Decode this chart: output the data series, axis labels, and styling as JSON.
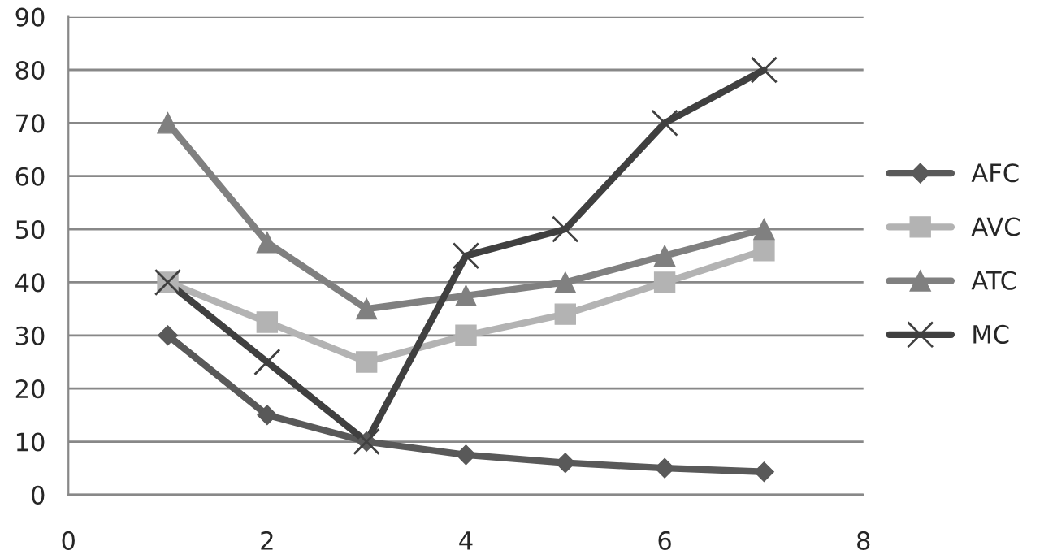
{
  "chart_data": {
    "type": "line",
    "x": [
      1,
      2,
      3,
      4,
      5,
      6,
      7
    ],
    "series": [
      {
        "name": "AFC",
        "color": "#595959",
        "marker": "diamond",
        "values": [
          30,
          15,
          10,
          7.5,
          6,
          5,
          4.3
        ]
      },
      {
        "name": "AVC",
        "color": "#b3b3b3",
        "marker": "square",
        "values": [
          40,
          32.5,
          25,
          30,
          34,
          40,
          46
        ]
      },
      {
        "name": "ATC",
        "color": "#808080",
        "marker": "triangle",
        "values": [
          70,
          47.5,
          35,
          37.5,
          40,
          45,
          50
        ]
      },
      {
        "name": "MC",
        "color": "#404040",
        "marker": "cross",
        "values": [
          40,
          25,
          10,
          45,
          50,
          70,
          80
        ]
      }
    ],
    "xlim": [
      0,
      8
    ],
    "xticks": [
      0,
      2,
      4,
      6,
      8
    ],
    "ylim": [
      0,
      90
    ],
    "yticks": [
      0,
      10,
      20,
      30,
      40,
      50,
      60,
      70,
      80,
      90
    ],
    "grid": "y",
    "legend": "right",
    "line_style": "solid"
  }
}
